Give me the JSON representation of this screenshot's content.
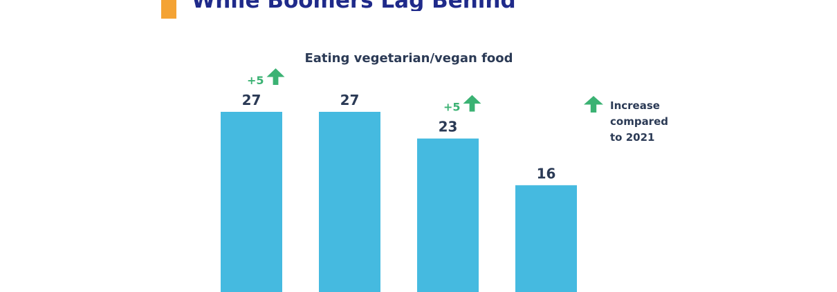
{
  "page": {
    "heading": "While Boomers Lag Behind"
  },
  "colors": {
    "accent": "#f4a334",
    "heading": "#1f2a8a",
    "bar": "#45bae0",
    "label": "#2b3a55",
    "increase": "#3bb273"
  },
  "legend": {
    "icon": "up-arrow-icon",
    "lines": [
      "Increase",
      "compared",
      "to 2021"
    ]
  },
  "chart_data": {
    "type": "bar",
    "title": "Eating vegetarian/vegan food",
    "xlabel": "",
    "ylabel": "",
    "categories": [
      "",
      "",
      "",
      ""
    ],
    "values": [
      27,
      27,
      23,
      16
    ],
    "value_labels": [
      "27",
      "27",
      "23",
      "16"
    ],
    "changes": [
      "+5",
      "",
      "+5",
      ""
    ],
    "ylim": [
      0,
      27
    ],
    "grid": false
  }
}
